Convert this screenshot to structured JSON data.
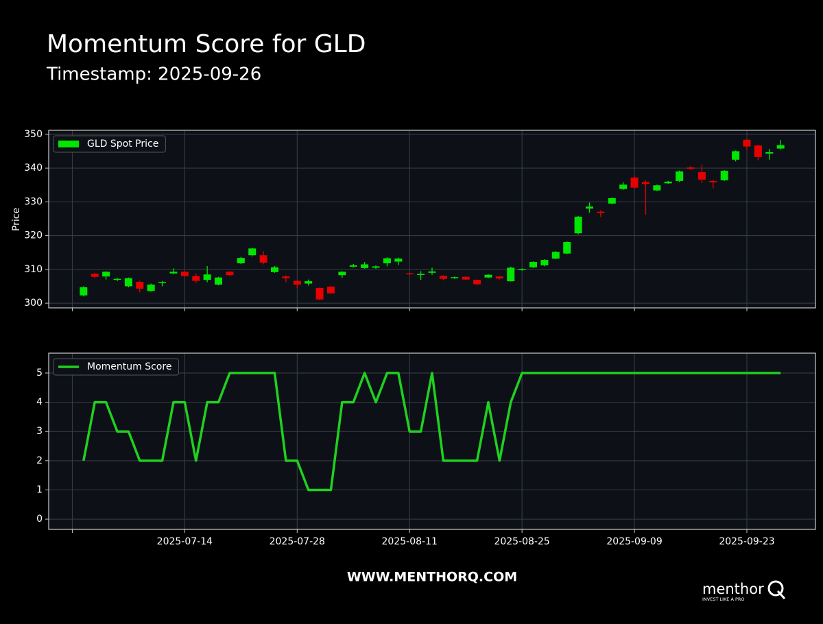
{
  "chart_data": [
    {
      "type": "candlestick",
      "title": "Momentum Score for GLD",
      "subtitle": "Timestamp: 2025-09-26",
      "ylabel": "Price",
      "xlim": [
        -3.1,
        65.1
      ],
      "xticks": [
        -1,
        9,
        19,
        29,
        39,
        49,
        59
      ],
      "ylim": [
        298.6,
        351.2
      ],
      "yticks": [
        300,
        310,
        320,
        330,
        340,
        350
      ],
      "grid": true,
      "legend": "upper left",
      "series": [
        {
          "name": "GLD Spot Price",
          "up_color": "#00e600",
          "down_color": "#e60000",
          "open": [
            302.3,
            308.7,
            307.9,
            306.9,
            305,
            306.3,
            303.6,
            306,
            308.8,
            309.3,
            308,
            306.9,
            305.5,
            309.3,
            311.8,
            314.2,
            314.2,
            309.2,
            307.9,
            306.6,
            305.8,
            304.5,
            304.9,
            308.3,
            310.8,
            310.4,
            310.5,
            311.8,
            312.3,
            308.8,
            308.4,
            309,
            308.1,
            307.4,
            307.8,
            306.9,
            307.6,
            307.9,
            306.5,
            309.8,
            310.6,
            311.2,
            313.2,
            314.7,
            320.7,
            328,
            327.1,
            329.5,
            333.8,
            337.2,
            335.9,
            333.4,
            335.5,
            336.2,
            340.2,
            338.8,
            336.2,
            336.4,
            342.5,
            348.4,
            346.7,
            344.3,
            345.8
          ],
          "high": [
            305,
            309,
            309.5,
            307.5,
            307.6,
            306.6,
            305.8,
            306.6,
            310.3,
            309.5,
            308.8,
            311,
            307.8,
            309.5,
            313.7,
            316.4,
            315.4,
            311,
            308.2,
            306.8,
            307,
            304.6,
            305.1,
            309.5,
            311.6,
            312.2,
            311.2,
            313.6,
            313.5,
            309,
            309.5,
            310.5,
            308.3,
            307.9,
            308,
            307,
            308.6,
            308,
            310.8,
            310.3,
            312.4,
            313,
            315.4,
            318.3,
            325.8,
            329.8,
            327.5,
            331.3,
            335.8,
            337.5,
            336.4,
            335.1,
            336.2,
            339.3,
            340.6,
            341,
            336.4,
            339.4,
            345.2,
            348.6,
            346.9,
            345.7,
            348.3
          ],
          "low": [
            302,
            307.5,
            307,
            306.5,
            304.7,
            303.2,
            303.4,
            305,
            308.6,
            307.7,
            306,
            306.2,
            305.3,
            308,
            311.6,
            313.8,
            311.5,
            309,
            306.2,
            304.5,
            305.2,
            300.9,
            302.7,
            307.5,
            310.6,
            310.2,
            310.2,
            310.9,
            311.3,
            308.3,
            306.9,
            308.4,
            306.8,
            307.2,
            306.8,
            305.3,
            307.4,
            307,
            306.4,
            309.6,
            310.4,
            310.9,
            313,
            314.5,
            320.4,
            326.8,
            325.5,
            329.3,
            333.6,
            334,
            326.2,
            333.2,
            335.3,
            335.9,
            339.5,
            335.6,
            334,
            336.2,
            342,
            345.4,
            342.3,
            342.5,
            345.5
          ],
          "close": [
            304.7,
            307.8,
            309.3,
            307.2,
            307.4,
            304.3,
            305.5,
            306.3,
            309.3,
            308,
            306.6,
            308.5,
            307.6,
            308.3,
            313.4,
            316.2,
            312,
            310.6,
            307.4,
            305.5,
            306.5,
            301.1,
            302.9,
            309.3,
            311.2,
            311.5,
            310.9,
            313.3,
            313.2,
            308.6,
            308.6,
            309.4,
            307.2,
            307.7,
            307,
            305.6,
            308.4,
            307.3,
            310.5,
            310.1,
            312.2,
            312.8,
            315.2,
            318.1,
            325.6,
            328.6,
            326.7,
            331.1,
            335.1,
            334.2,
            335.3,
            334.9,
            336,
            339,
            339.8,
            336.6,
            335.8,
            339.2,
            345,
            346.4,
            343.3,
            344.7,
            346.8
          ]
        }
      ]
    },
    {
      "type": "line",
      "categories": [
        null,
        null,
        null,
        null,
        null,
        null,
        null,
        null,
        null,
        "2025-07-14",
        null,
        null,
        null,
        null,
        null,
        null,
        null,
        null,
        null,
        "2025-07-28",
        null,
        null,
        null,
        null,
        null,
        null,
        null,
        null,
        null,
        "2025-08-11",
        null,
        null,
        null,
        null,
        null,
        null,
        null,
        null,
        null,
        "2025-08-25",
        null,
        null,
        null,
        null,
        null,
        null,
        null,
        null,
        null,
        "2025-09-09",
        null,
        null,
        null,
        null,
        null,
        null,
        null,
        null,
        null,
        "2025-09-23",
        null,
        null,
        null
      ],
      "xlim": [
        -3.1,
        65.1
      ],
      "xticks": [
        -1,
        9,
        19,
        29,
        39,
        49,
        59
      ],
      "ylim": [
        -0.35,
        5.68
      ],
      "yticks": [
        0,
        1,
        2,
        3,
        4,
        5
      ],
      "grid": true,
      "legend": "upper left",
      "series": [
        {
          "name": "Momentum Score",
          "color": "#1fd11f",
          "values": [
            2,
            4,
            4,
            3,
            3,
            2,
            2,
            2,
            4,
            4,
            2,
            4,
            4,
            5,
            5,
            5,
            5,
            5,
            2,
            2,
            1,
            1,
            1,
            4,
            4,
            5,
            4,
            5,
            5,
            3,
            3,
            5,
            2,
            2,
            2,
            2,
            4,
            2,
            4,
            5,
            5,
            5,
            5,
            5,
            5,
            5,
            5,
            5,
            5,
            5,
            5,
            5,
            5,
            5,
            5,
            5,
            5,
            5,
            5,
            5,
            5,
            5,
            5
          ]
        }
      ]
    }
  ],
  "footer": {
    "url": "WWW.MENTHORQ.COM",
    "brand": "menthor",
    "tagline": "INVEST LIKE A PRO"
  }
}
